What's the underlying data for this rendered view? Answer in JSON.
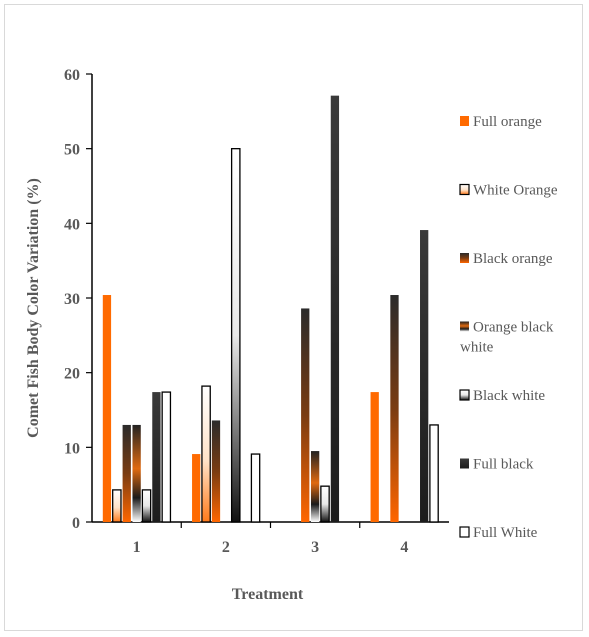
{
  "chart_data": {
    "type": "bar",
    "title": "",
    "xlabel": "Treatment",
    "ylabel": "Comet Fish Body Color Variation (%)",
    "ylim": [
      0,
      60
    ],
    "yticks": [
      0,
      10,
      20,
      30,
      40,
      50,
      60
    ],
    "categories": [
      "1",
      "2",
      "3",
      "4"
    ],
    "grid": false,
    "legend_position": "right",
    "series": [
      {
        "name": "Full orange",
        "values": [
          30.4,
          9.1,
          0,
          17.4
        ],
        "color": "#ff6600"
      },
      {
        "name": "White Orange",
        "values": [
          4.3,
          18.2,
          0,
          0
        ],
        "color": "#ff8c33"
      },
      {
        "name": "Black orange",
        "values": [
          13.0,
          13.6,
          28.6,
          30.4
        ],
        "color": "#8a4a1c"
      },
      {
        "name": "Orange black white",
        "values": [
          13.0,
          0,
          9.5,
          0
        ],
        "color": "#5a3314"
      },
      {
        "name": "Black white",
        "values": [
          4.3,
          50.0,
          4.8,
          0
        ],
        "color": "#bfbfbf"
      },
      {
        "name": "Full black",
        "values": [
          17.4,
          0,
          57.1,
          39.1
        ],
        "color": "#262626"
      },
      {
        "name": "Full White",
        "values": [
          17.4,
          9.1,
          0,
          13.0
        ],
        "color": "#ffffff"
      }
    ]
  }
}
